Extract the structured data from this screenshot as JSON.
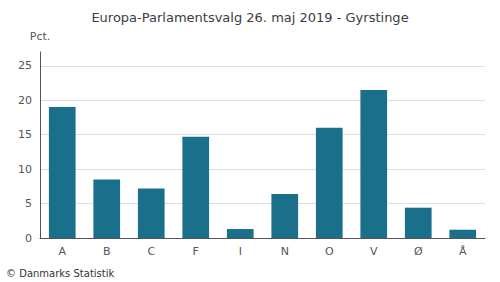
{
  "chart_data": {
    "type": "bar",
    "title": "Europa-Parlamentsvalg 26. maj 2019 - Gyrstinge",
    "ylabel": "Pct.",
    "categories": [
      "A",
      "B",
      "C",
      "F",
      "I",
      "N",
      "O",
      "V",
      "Ø",
      "Å"
    ],
    "values": [
      19.0,
      8.5,
      7.2,
      14.7,
      1.3,
      6.4,
      16.0,
      21.5,
      4.4,
      1.2
    ],
    "color": "#1a6f8a",
    "ylim": [
      0,
      27
    ],
    "yticks": [
      0,
      5,
      10,
      15,
      20,
      25
    ],
    "grid": true,
    "annotations": [
      "© Danmarks Statistik"
    ]
  }
}
